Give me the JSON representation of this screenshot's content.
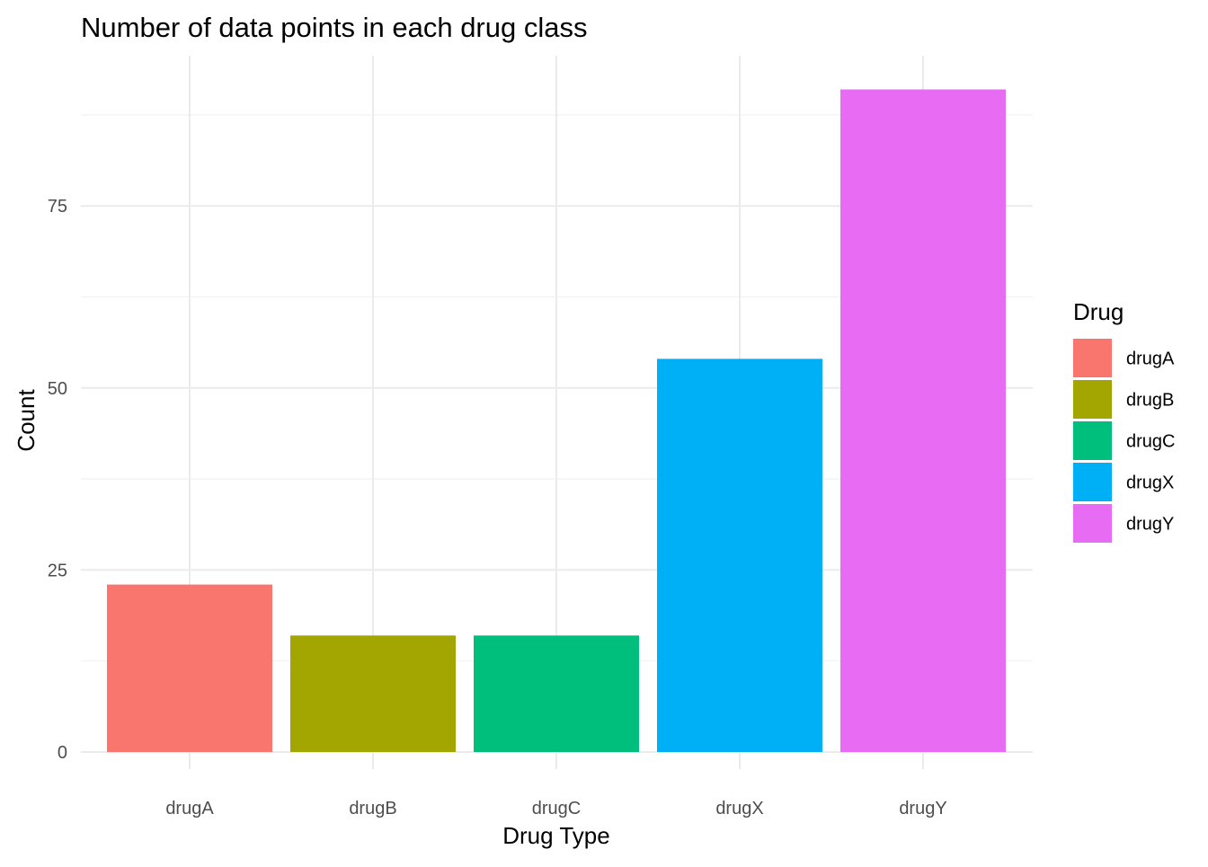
{
  "chart_data": {
    "type": "bar",
    "title": "Number of data points in each drug class",
    "xlabel": "Drug Type",
    "ylabel": "Count",
    "categories": [
      "drugA",
      "drugB",
      "drugC",
      "drugX",
      "drugY"
    ],
    "values": [
      23,
      16,
      16,
      54,
      91
    ],
    "colors": [
      "#F8766D",
      "#A3A500",
      "#00BF7D",
      "#00B0F6",
      "#E76BF3"
    ],
    "ylim": [
      0,
      95
    ],
    "yticks": [
      0,
      25,
      50,
      75
    ],
    "ytick_labels": [
      "0",
      "25",
      "50",
      "75"
    ],
    "grid": true,
    "legend": {
      "title": "Drug",
      "position": "right",
      "entries": [
        "drugA",
        "drugB",
        "drugC",
        "drugX",
        "drugY"
      ]
    }
  }
}
